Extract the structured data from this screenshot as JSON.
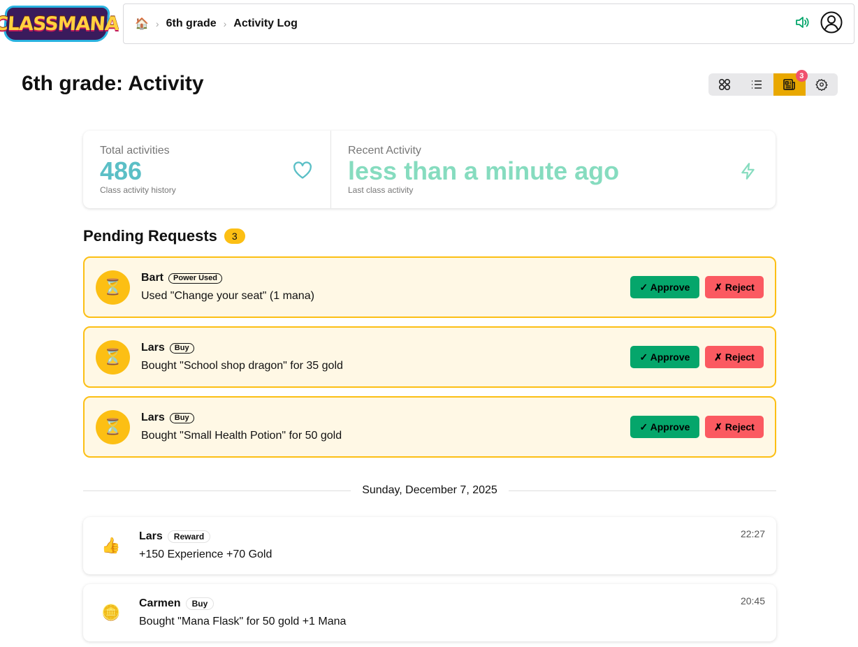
{
  "app": {
    "logo_text": "CLASSMANA"
  },
  "breadcrumb": {
    "home_icon": "🏠",
    "items": [
      "6th grade",
      "Activity Log"
    ]
  },
  "page": {
    "title": "6th grade: Activity"
  },
  "views": {
    "items": [
      "grid",
      "list",
      "feed",
      "settings"
    ],
    "active": "feed",
    "feed_badge": "3"
  },
  "stats": {
    "total": {
      "label": "Total activities",
      "value": "486",
      "desc": "Class activity history",
      "color": "#5bbfc6"
    },
    "recent": {
      "label": "Recent Activity",
      "value": "less than a minute ago",
      "desc": "Last class activity",
      "color": "#86dcbf"
    }
  },
  "pending": {
    "title": "Pending Requests",
    "count": "3",
    "approve_label": "✓ Approve",
    "reject_label": "✗ Reject",
    "items": [
      {
        "name": "Bart",
        "tag": "Power Used",
        "desc": "Used \"Change your seat\" (1 mana)",
        "icon": "⏳"
      },
      {
        "name": "Lars",
        "tag": "Buy",
        "desc": "Bought \"School shop dragon\" for 35 gold",
        "icon": "⏳"
      },
      {
        "name": "Lars",
        "tag": "Buy",
        "desc": "Bought \"Small Health Potion\" for 50 gold",
        "icon": "⏳"
      }
    ]
  },
  "log": {
    "date": "Sunday, December 7, 2025",
    "items": [
      {
        "name": "Lars",
        "tag": "Reward",
        "desc": "+150 Experience +70 Gold",
        "time": "22:27",
        "icon": "👍"
      },
      {
        "name": "Carmen",
        "tag": "Buy",
        "desc": "Bought \"Mana Flask\" for 50 gold +1 Mana",
        "time": "20:45",
        "icon": "🪙"
      }
    ]
  }
}
